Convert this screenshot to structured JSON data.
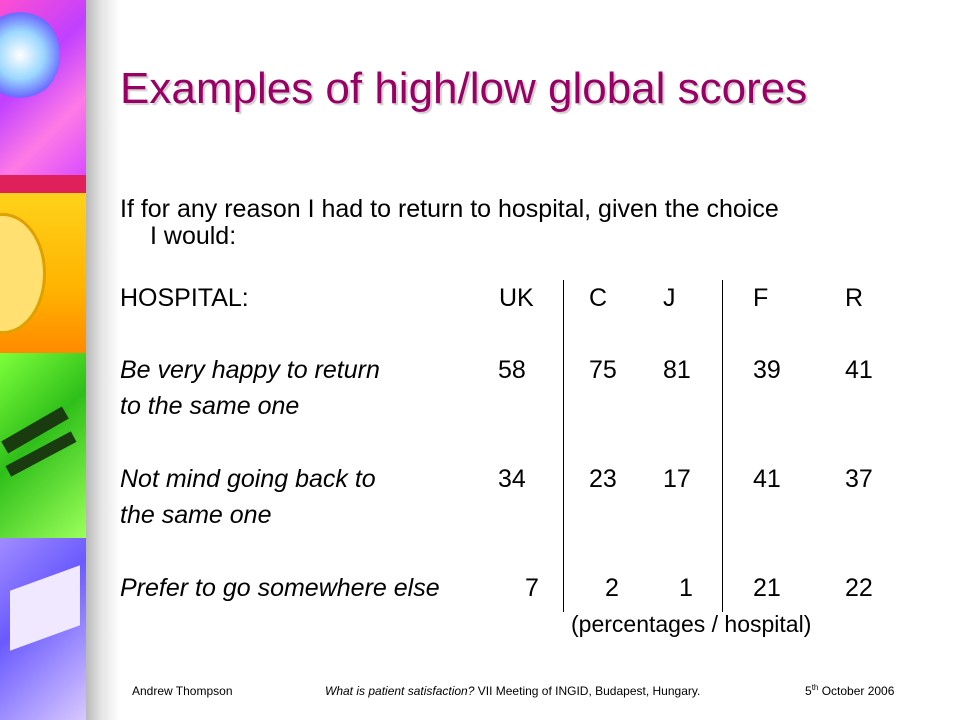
{
  "slide": {
    "title": "Examples of high/low global scores",
    "question_line1": "If for any reason I had to return to hospital, given the choice",
    "question_line2": "I would:"
  },
  "table": {
    "header_label": "HOSPITAL:",
    "columns": [
      "UK",
      "C",
      "J",
      "F",
      "R"
    ],
    "rows": [
      {
        "label_line1": "Be very happy to return",
        "label_line2": "to the same one",
        "values": [
          "58",
          "75",
          "81",
          "39",
          "41"
        ]
      },
      {
        "label_line1": "Not mind going back to",
        "label_line2": "the same one",
        "values": [
          "34",
          "23",
          "17",
          "41",
          "37"
        ]
      },
      {
        "label_line1": "Prefer to go somewhere else",
        "label_line2": "",
        "values": [
          "7",
          "2",
          "1",
          "21",
          "22"
        ]
      }
    ],
    "note": "(percentages / hospital)"
  },
  "footer": {
    "author": "Andrew Thompson",
    "event_italic": "What is patient satisfaction?",
    "event_rest": " VII Meeting of INGID, Budapest, Hungary.",
    "date_day": "5",
    "date_suffix": "th",
    "date_rest": " October 2006"
  }
}
